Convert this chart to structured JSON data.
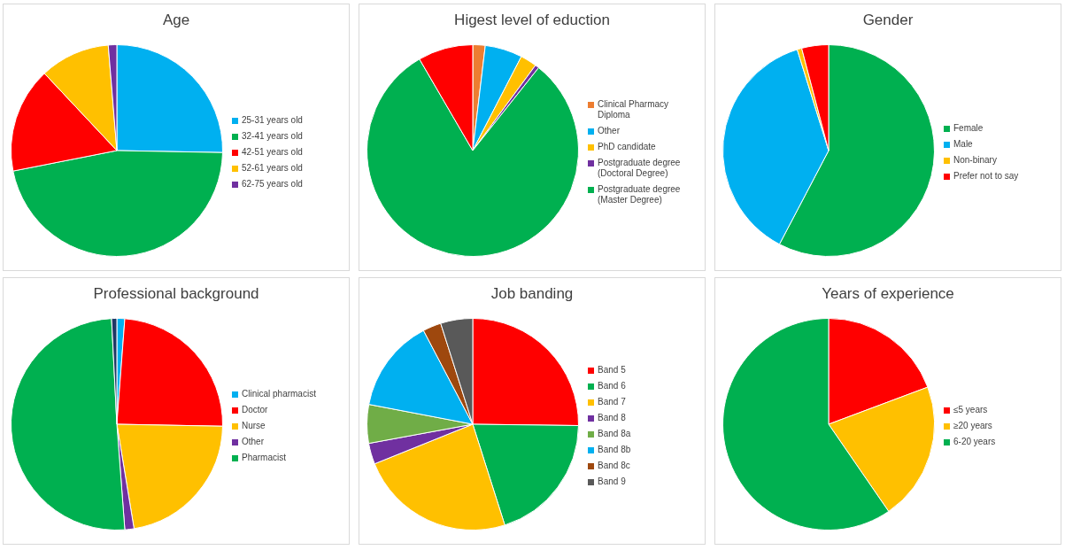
{
  "chart_data": [
    {
      "type": "pie",
      "title": "Age",
      "categories": [
        "25-31 years old",
        "32-41 years old",
        "42-51 years old",
        "52-61 years old",
        "62-75 years old"
      ],
      "values": [
        25.3,
        46.6,
        16.1,
        10.7,
        1.3
      ],
      "colors": [
        "#00b0f0",
        "#00b050",
        "#ff0000",
        "#ffc000",
        "#7030a0"
      ],
      "legend": "right"
    },
    {
      "type": "pie",
      "title": "Higest level of eduction",
      "categories": [
        "Clinical Pharmacy Diploma",
        "Other",
        "PhD candidate",
        "Postgraduate degree (Doctoral Degree)",
        "Postgraduate degree (Master Degree)",
        null
      ],
      "values": [
        1.9,
        5.7,
        2.5,
        0.6,
        80.9,
        8.4
      ],
      "colors": [
        "#ed7d31",
        "#00b0f0",
        "#ffc000",
        "#7030a0",
        "#00b050",
        "#ff0000"
      ],
      "legend": "right"
    },
    {
      "type": "pie",
      "title": "Gender",
      "categories": [
        "Female",
        "Male",
        "Non-binary",
        "Prefer not to say"
      ],
      "values": [
        57.7,
        37.5,
        0.7,
        4.1
      ],
      "colors": [
        "#00b050",
        "#00b0f0",
        "#ffc000",
        "#ff0000"
      ],
      "legend": "right"
    },
    {
      "type": "pie",
      "title": "Professional background",
      "categories": [
        "Clinical pharmacist",
        "Doctor",
        "Nurse",
        "Other",
        "Pharmacist",
        null
      ],
      "values": [
        1.2,
        24.1,
        22.1,
        1.4,
        50.4,
        0.8
      ],
      "colors": [
        "#00b0f0",
        "#ff0000",
        "#ffc000",
        "#7030a0",
        "#00b050",
        "#1f3864"
      ],
      "legend": "right"
    },
    {
      "type": "pie",
      "title": "Job banding",
      "categories": [
        "Band 5",
        "Band 6",
        "Band 7",
        "Band 8",
        "Band 8a",
        "Band 8b",
        "Band 8c",
        "Band 9"
      ],
      "values": [
        25.2,
        19.9,
        23.8,
        3.2,
        5.9,
        14.3,
        2.8,
        4.9
      ],
      "colors": [
        "#ff0000",
        "#00b050",
        "#ffc000",
        "#7030a0",
        "#70ad47",
        "#00b0f0",
        "#9e480e",
        "#595959"
      ],
      "legend": "right"
    },
    {
      "type": "pie",
      "title": "Years of experience",
      "categories": [
        "≤5 years",
        "≥20 years",
        "6-20 years"
      ],
      "values": [
        19.3,
        21.1,
        59.6
      ],
      "colors": [
        "#ff0000",
        "#ffc000",
        "#00b050"
      ],
      "legend": "right"
    }
  ]
}
